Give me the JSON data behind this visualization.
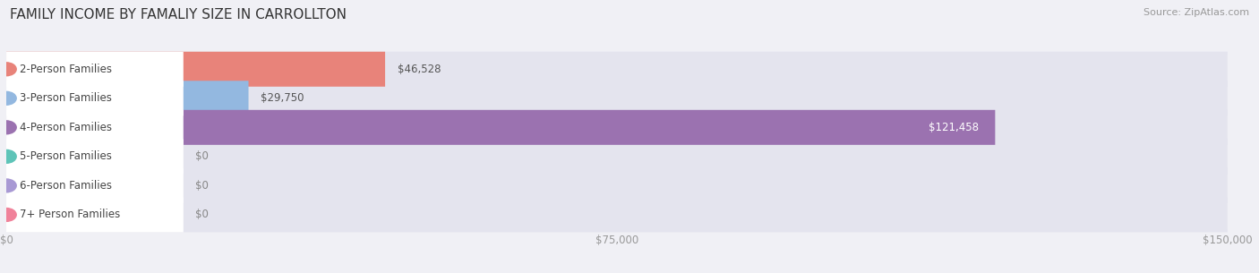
{
  "title": "FAMILY INCOME BY FAMALIY SIZE IN CARROLLTON",
  "source": "Source: ZipAtlas.com",
  "categories": [
    "2-Person Families",
    "3-Person Families",
    "4-Person Families",
    "5-Person Families",
    "6-Person Families",
    "7+ Person Families"
  ],
  "values": [
    46528,
    29750,
    121458,
    0,
    0,
    0
  ],
  "bar_colors": [
    "#e8837a",
    "#93b8e0",
    "#9b72b0",
    "#5ec4b8",
    "#a899d4",
    "#f0829a"
  ],
  "value_labels": [
    "$46,528",
    "$29,750",
    "$121,458",
    "$0",
    "$0",
    "$0"
  ],
  "xlim": [
    0,
    150000
  ],
  "xticklabels": [
    "$0",
    "$75,000",
    "$150,000"
  ],
  "xtick_vals": [
    0,
    75000,
    150000
  ],
  "bg_color": "#f0f0f5",
  "bar_bg_color": "#e4e4ee",
  "title_fontsize": 11,
  "source_fontsize": 8,
  "label_fontsize": 8.5,
  "value_fontsize": 8.5
}
